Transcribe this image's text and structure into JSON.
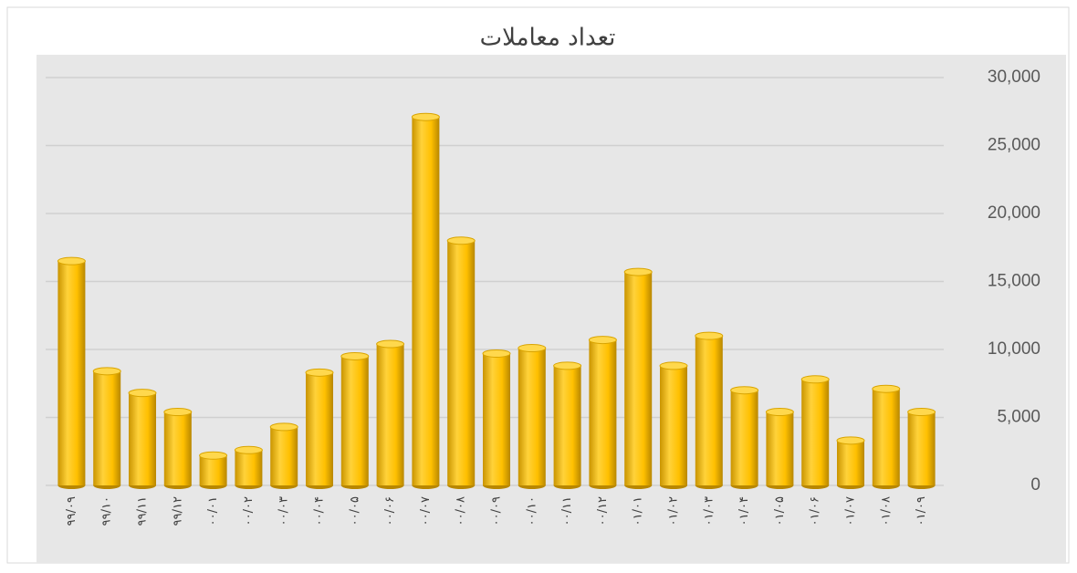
{
  "chart_data": {
    "type": "bar",
    "title": "تعداد معاملات",
    "categories": [
      "۹۹/۰۹",
      "۹۹/۱۰",
      "۹۹/۱۱",
      "۹۹/۱۲",
      "۰۰/۰۱",
      "۰۰/۰۲",
      "۰۰/۰۳",
      "۰۰/۰۴",
      "۰۰/۰۵",
      "۰۰/۰۶",
      "۰۰/۰۷",
      "۰۰/۰۸",
      "۰۰/۰۹",
      "۰۰/۱۰",
      "۰۰/۱۱",
      "۰۰/۱۲",
      "۰۱/۰۱",
      "۰۱/۰۲",
      "۰۱/۰۳",
      "۰۱/۰۴",
      "۰۱/۰۵",
      "۰۱/۰۶",
      "۰۱/۰۷",
      "۰۱/۰۸",
      "۰۱/۰۹"
    ],
    "values": [
      16500,
      8400,
      6800,
      5400,
      2200,
      2600,
      4300,
      8300,
      9500,
      10400,
      27100,
      18000,
      9700,
      10100,
      8800,
      10700,
      15700,
      8800,
      11000,
      7000,
      5400,
      7800,
      3300,
      7100,
      5400
    ],
    "color": "#ffc000",
    "ylim": [
      0,
      30000
    ],
    "yticks": [
      0,
      {
        "value": 5000,
        "label": "5,000"
      },
      {
        "value": 10000,
        "label": "10,000"
      },
      {
        "value": 15000,
        "label": "15,000"
      },
      {
        "value": 20000,
        "label": "20,000"
      },
      {
        "value": 25000,
        "label": "25,000"
      },
      {
        "value": 30000,
        "label": "30,000"
      }
    ],
    "grid": true
  }
}
